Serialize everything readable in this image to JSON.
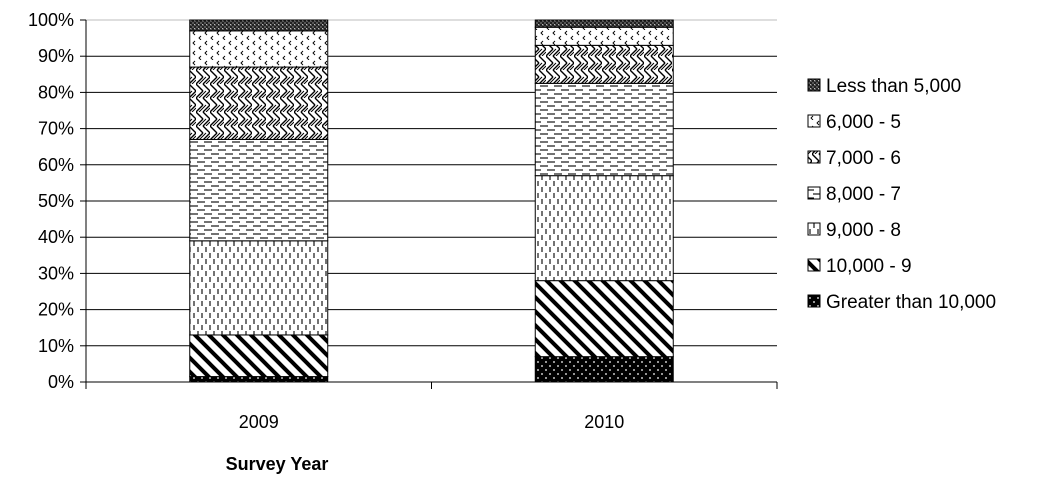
{
  "chart_data": {
    "type": "bar",
    "stacked": true,
    "percent": true,
    "categories": [
      "2009",
      "2010"
    ],
    "series": [
      {
        "name": "Greater than 10,000",
        "values": [
          1.5,
          7
        ],
        "pattern": "solid-dots"
      },
      {
        "name": "10,000 - 9",
        "values": [
          11.5,
          21
        ],
        "pattern": "diag-down"
      },
      {
        "name": "9,000 - 8",
        "values": [
          26,
          29
        ],
        "pattern": "vertical-dashes"
      },
      {
        "name": "8,000 - 7",
        "values": [
          28,
          25.5
        ],
        "pattern": "horizontal-dashes"
      },
      {
        "name": "7,000 - 6",
        "values": [
          20,
          10.5
        ],
        "pattern": "weave"
      },
      {
        "name": "6,000 - 5",
        "values": [
          10,
          5
        ],
        "pattern": "chevrons"
      },
      {
        "name": "Less than 5,000",
        "values": [
          3,
          2
        ],
        "pattern": "dark-check"
      }
    ],
    "yticks": [
      "0%",
      "10%",
      "20%",
      "30%",
      "40%",
      "50%",
      "60%",
      "70%",
      "80%",
      "90%",
      "100%"
    ],
    "ylim": [
      0,
      100
    ],
    "xlabel": "Survey Year",
    "ylabel": "",
    "title": "",
    "grid": true,
    "legend_position": "right",
    "legend_order": [
      "Less than 5,000",
      "6,000 - 5",
      "7,000 - 6",
      "8,000 - 7",
      "9,000 - 8",
      "10,000 - 9",
      "Greater than 10,000"
    ]
  }
}
